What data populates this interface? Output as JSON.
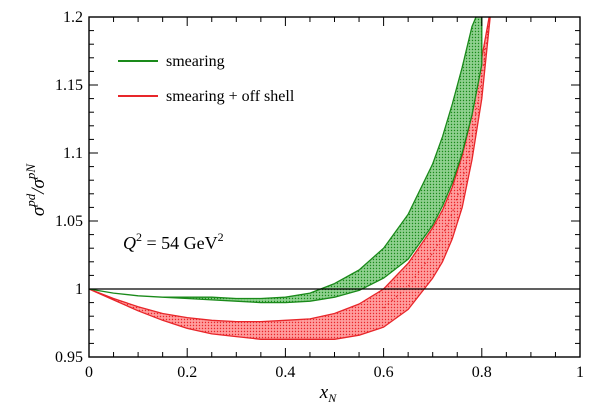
{
  "chart_data": {
    "type": "area",
    "xlabel": "x",
    "xlabel_sub": "N",
    "ylabel": {
      "main": "σ",
      "sup1": "pd",
      "slash": "/",
      "main2": "σ",
      "sup2": "pN"
    },
    "xlim": [
      0,
      1
    ],
    "ylim": [
      0.95,
      1.2
    ],
    "x_ticks": [
      0,
      0.2,
      0.4,
      0.6,
      0.8,
      1
    ],
    "x_tick_labels": [
      "0",
      "0.2",
      "0.4",
      "0.6",
      "0.8",
      "1"
    ],
    "y_ticks": [
      0.95,
      1,
      1.05,
      1.1,
      1.15,
      1.2
    ],
    "y_tick_labels": [
      "0.95",
      "1",
      "1.05",
      "1.1",
      "1.15",
      "1.2"
    ],
    "annotation": {
      "q": "Q",
      "exp1": "2",
      "eq": " = 54 GeV",
      "exp2": "2"
    },
    "reference_line_y": 1,
    "legend_position": "top-left",
    "series": [
      {
        "name": "smearing",
        "color": "#1a8a1a",
        "fill": "#5cb85c",
        "x": [
          0,
          0.05,
          0.1,
          0.15,
          0.2,
          0.25,
          0.3,
          0.35,
          0.4,
          0.45,
          0.5,
          0.55,
          0.6,
          0.65,
          0.7,
          0.72,
          0.74,
          0.76,
          0.78,
          0.8
        ],
        "upper": [
          1.0,
          0.997,
          0.995,
          0.994,
          0.994,
          0.994,
          0.993,
          0.993,
          0.994,
          0.997,
          1.004,
          1.014,
          1.03,
          1.055,
          1.092,
          1.112,
          1.136,
          1.163,
          1.193,
          1.21
        ],
        "lower": [
          1.0,
          0.997,
          0.995,
          0.994,
          0.993,
          0.992,
          0.991,
          0.99,
          0.99,
          0.991,
          0.994,
          0.999,
          1.008,
          1.022,
          1.047,
          1.061,
          1.078,
          1.1,
          1.128,
          1.165
        ]
      },
      {
        "name": "smearing + off shell",
        "color": "#e8262a",
        "fill": "#ff7a7a",
        "x": [
          0,
          0.05,
          0.1,
          0.15,
          0.2,
          0.25,
          0.3,
          0.35,
          0.4,
          0.45,
          0.5,
          0.55,
          0.6,
          0.65,
          0.7,
          0.72,
          0.74,
          0.76,
          0.78,
          0.8,
          0.82
        ],
        "upper": [
          1.0,
          0.993,
          0.987,
          0.982,
          0.979,
          0.977,
          0.976,
          0.976,
          0.977,
          0.978,
          0.982,
          0.989,
          1.0,
          1.019,
          1.045,
          1.058,
          1.075,
          1.098,
          1.128,
          1.17,
          1.21
        ],
        "lower": [
          1.0,
          0.992,
          0.984,
          0.977,
          0.971,
          0.967,
          0.965,
          0.963,
          0.963,
          0.963,
          0.963,
          0.966,
          0.972,
          0.985,
          1.008,
          1.02,
          1.037,
          1.06,
          1.095,
          1.14,
          1.21
        ]
      }
    ]
  }
}
